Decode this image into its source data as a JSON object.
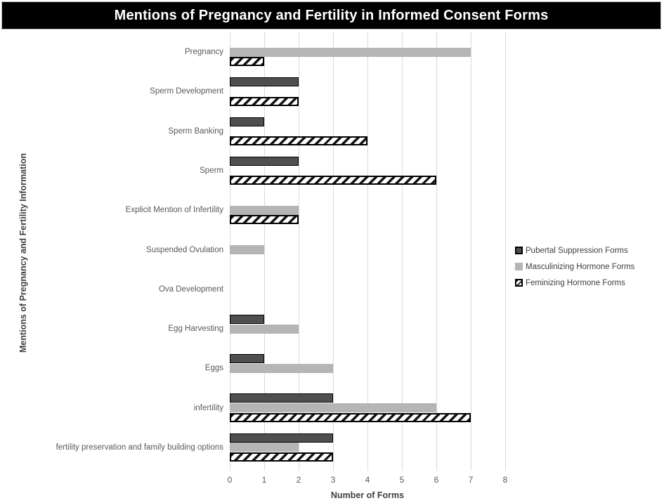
{
  "title": "Mentions of Pregnancy and Fertility in Informed Consent Forms",
  "colors": {
    "banner_background": "#000000",
    "banner_text": "#ffffff",
    "gridline": "#d9d9d9",
    "tick_text": "#595959",
    "axis_title_text": "#404040",
    "series_pubertal_fill": "#4f4f4f",
    "series_masculinizing_fill": "#b5b5b5",
    "series_feminizing_fill": "#ffffff",
    "series_border": "#000000"
  },
  "chart_data": {
    "type": "bar",
    "orientation": "horizontal",
    "title": "Mentions of Pregnancy and Fertility in Informed Consent Forms",
    "xlabel": "Number of Forms",
    "ylabel": "Mentions of Pregnancy and Fertility Information",
    "xlim": [
      0,
      8
    ],
    "x_ticks": [
      "0",
      "1",
      "2",
      "3",
      "4",
      "5",
      "6",
      "7",
      "8"
    ],
    "grid": true,
    "legend_position": "right",
    "categories": [
      "Pregnancy",
      "Sperm Development",
      "Sperm Banking",
      "Sperm",
      "Explicit Mention of Infertility",
      "Suspended Ovulation",
      "Ova Development",
      "Egg Harvesting",
      "Eggs",
      "infertility",
      "fertility preservation and family building options"
    ],
    "series": [
      {
        "name": "Pubertal Suppression Forms",
        "pattern": "solid-dark",
        "values": [
          0,
          2,
          1,
          2,
          0,
          0,
          0,
          1,
          1,
          3,
          3
        ]
      },
      {
        "name": "Masculinizing Hormone Forms",
        "pattern": "solid-gray",
        "values": [
          7,
          0,
          0,
          0,
          2,
          1,
          0,
          2,
          3,
          6,
          2
        ]
      },
      {
        "name": "Feminizing Hormone Forms",
        "pattern": "diagonal-hatch",
        "values": [
          1,
          2,
          4,
          6,
          2,
          0,
          0,
          0,
          0,
          7,
          3
        ]
      }
    ]
  }
}
